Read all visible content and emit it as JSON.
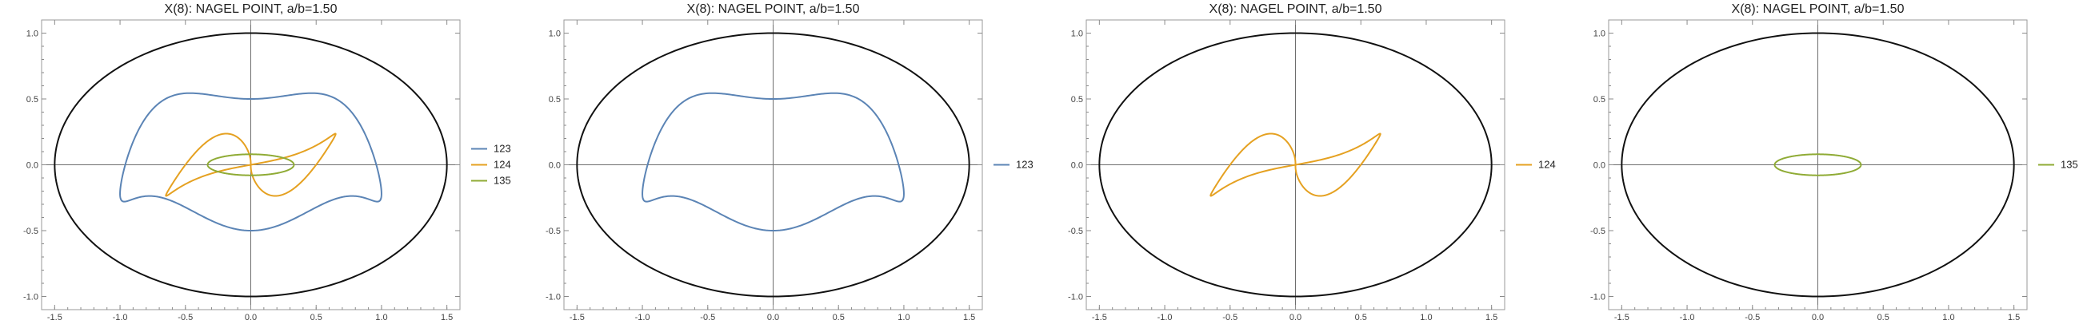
{
  "chart_data": [
    {
      "type": "line",
      "title": "X(8): NAGEL POINT, a/b=1.50",
      "xlim": [
        -1.6,
        1.6
      ],
      "ylim": [
        -1.1,
        1.1
      ],
      "xticks": [
        "-1.5",
        "-1.0",
        "-0.5",
        "0.0",
        "0.5",
        "1.0",
        "1.5"
      ],
      "yticks": [
        "-1.0",
        "-0.5",
        "0.0",
        "0.5",
        "1.0"
      ],
      "legend": "right",
      "series": [
        {
          "name": "123",
          "color": "#5b84b5"
        },
        {
          "name": "124",
          "color": "#e5a121"
        },
        {
          "name": "135",
          "color": "#8fab35"
        }
      ]
    },
    {
      "type": "line",
      "title": "X(8): NAGEL POINT, a/b=1.50",
      "xlim": [
        -1.6,
        1.6
      ],
      "ylim": [
        -1.1,
        1.1
      ],
      "xticks": [
        "-1.5",
        "-1.0",
        "-0.5",
        "0.0",
        "0.5",
        "1.0",
        "1.5"
      ],
      "yticks": [
        "-1.0",
        "-0.5",
        "0.0",
        "0.5",
        "1.0"
      ],
      "legend": "right",
      "series": [
        {
          "name": "123",
          "color": "#5b84b5"
        }
      ]
    },
    {
      "type": "line",
      "title": "X(8): NAGEL POINT, a/b=1.50",
      "xlim": [
        -1.6,
        1.6
      ],
      "ylim": [
        -1.1,
        1.1
      ],
      "xticks": [
        "-1.5",
        "-1.0",
        "-0.5",
        "0.0",
        "0.5",
        "1.0",
        "1.5"
      ],
      "yticks": [
        "-1.0",
        "-0.5",
        "0.0",
        "0.5",
        "1.0"
      ],
      "legend": "right",
      "series": [
        {
          "name": "124",
          "color": "#e5a121"
        }
      ]
    },
    {
      "type": "line",
      "title": "X(8): NAGEL POINT, a/b=1.50",
      "xlim": [
        -1.6,
        1.6
      ],
      "ylim": [
        -1.1,
        1.1
      ],
      "xticks": [
        "-1.5",
        "-1.0",
        "-0.5",
        "0.0",
        "0.5",
        "1.0",
        "1.5"
      ],
      "yticks": [
        "-1.0",
        "-0.5",
        "0.0",
        "0.5",
        "1.0"
      ],
      "legend": "right",
      "series": [
        {
          "name": "135",
          "color": "#8fab35"
        }
      ]
    }
  ]
}
